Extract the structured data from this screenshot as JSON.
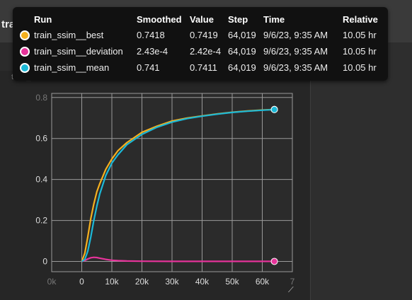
{
  "card": {
    "title": "train_ssim",
    "subtitle": "train_ssim"
  },
  "tooltip": {
    "headers": {
      "run": "Run",
      "smoothed": "Smoothed",
      "value": "Value",
      "step": "Step",
      "time": "Time",
      "relative": "Relative"
    },
    "rows": [
      {
        "run": "train_ssim__best",
        "smoothed": "0.7418",
        "value": "0.7419",
        "step": "64,019",
        "time": "9/6/23, 9:35 AM",
        "relative": "10.05 hr",
        "color": "#f5b01f"
      },
      {
        "run": "train_ssim__deviation",
        "smoothed": "2.43e-4",
        "value": "2.42e-4",
        "step": "64,019",
        "time": "9/6/23, 9:35 AM",
        "relative": "10.05 hr",
        "color": "#e6339a"
      },
      {
        "run": "train_ssim__mean",
        "smoothed": "0.741",
        "value": "0.7411",
        "step": "64,019",
        "time": "9/6/23, 9:35 AM",
        "relative": "10.05 hr",
        "color": "#1cb8d6"
      }
    ]
  },
  "chart_data": {
    "type": "line",
    "title": "",
    "xlabel": "",
    "ylabel": "",
    "xlim": [
      -10000,
      70000
    ],
    "ylim": [
      -0.05,
      0.82
    ],
    "x_ticks": [
      "0k",
      "0",
      "10k",
      "20k",
      "30k",
      "40k",
      "50k",
      "60k",
      "7"
    ],
    "y_ticks": [
      "0",
      "0.2",
      "0.4",
      "0.6",
      "0.8"
    ],
    "grid": true,
    "series": [
      {
        "name": "train_ssim__best",
        "color": "#f5b01f",
        "x": [
          0,
          1000,
          2000,
          3000,
          4000,
          5000,
          6000,
          8000,
          10000,
          12000,
          15000,
          20000,
          25000,
          30000,
          35000,
          40000,
          45000,
          50000,
          55000,
          60000,
          64019
        ],
        "y": [
          0.0,
          0.04,
          0.12,
          0.21,
          0.28,
          0.34,
          0.38,
          0.45,
          0.5,
          0.54,
          0.58,
          0.63,
          0.66,
          0.685,
          0.7,
          0.71,
          0.72,
          0.728,
          0.734,
          0.739,
          0.7418
        ]
      },
      {
        "name": "train_ssim__deviation",
        "color": "#e6339a",
        "x": [
          0,
          1000,
          2000,
          3000,
          4000,
          5000,
          6000,
          8000,
          10000,
          12000,
          15000,
          20000,
          30000,
          40000,
          50000,
          60000,
          64019
        ],
        "y": [
          0.0,
          0.005,
          0.012,
          0.018,
          0.02,
          0.019,
          0.016,
          0.01,
          0.006,
          0.004,
          0.002,
          0.001,
          0.0005,
          0.0003,
          0.00025,
          0.00024,
          0.000243
        ]
      },
      {
        "name": "train_ssim__mean",
        "color": "#1cb8d6",
        "x": [
          0,
          1000,
          2000,
          3000,
          4000,
          5000,
          6000,
          8000,
          10000,
          12000,
          15000,
          20000,
          25000,
          30000,
          35000,
          40000,
          45000,
          50000,
          55000,
          60000,
          64019
        ],
        "y": [
          0.0,
          0.01,
          0.05,
          0.12,
          0.2,
          0.27,
          0.33,
          0.42,
          0.48,
          0.52,
          0.57,
          0.62,
          0.655,
          0.68,
          0.697,
          0.709,
          0.719,
          0.727,
          0.733,
          0.738,
          0.741
        ]
      }
    ]
  }
}
